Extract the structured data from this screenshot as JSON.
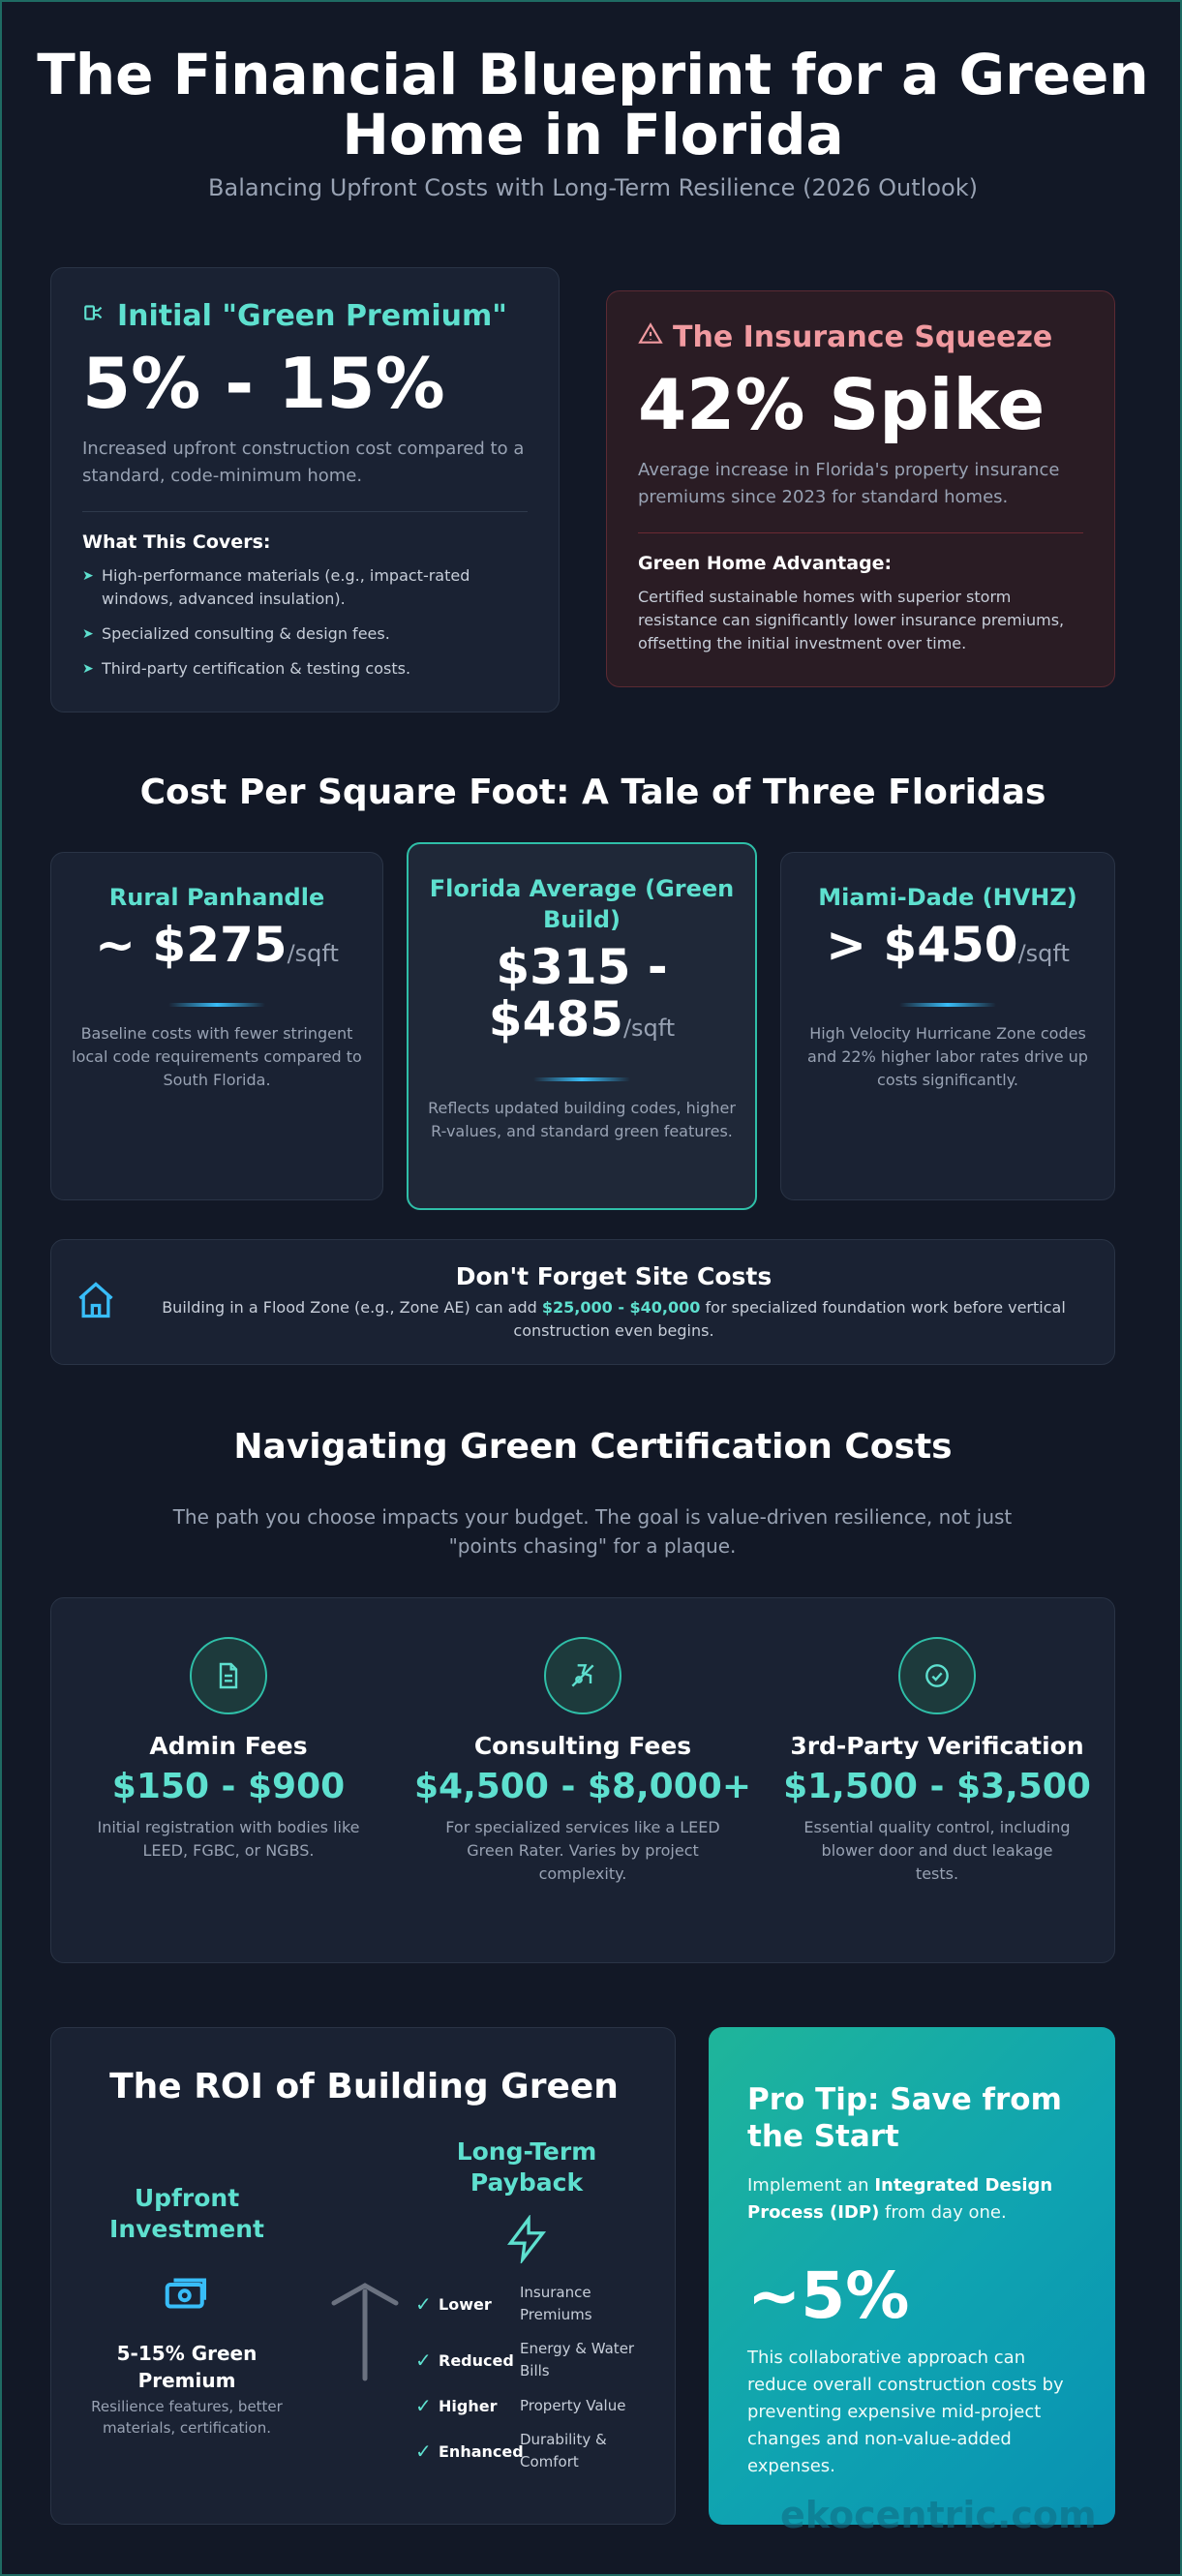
{
  "header": {
    "title": "The Financial Blueprint for a Green Home in Florida",
    "subtitle": "Balancing Upfront Costs with Long-Term Resilience (2026 Outlook)"
  },
  "green_premium": {
    "heading": "Initial \"Green Premium\"",
    "value": "5% - 15%",
    "description": "Increased upfront construction cost compared to a standard, code-minimum home.",
    "covers_title": "What This Covers:",
    "items": [
      "High-performance materials (e.g., impact-rated windows, advanced insulation).",
      "Specialized consulting & design fees.",
      "Third-party certification & testing costs."
    ]
  },
  "insurance": {
    "heading": "The Insurance Squeeze",
    "value": "42% Spike",
    "description": "Average increase in Florida's property insurance premiums since 2023 for standard homes.",
    "advantage_title": "Green Home Advantage:",
    "advantage_text": "Certified sustainable homes with superior storm resistance can significantly lower insurance premiums, offsetting the initial investment over time."
  },
  "cost_section": {
    "title": "Cost Per Square Foot: A Tale of Three Floridas",
    "tiers": [
      {
        "name": "Rural Panhandle",
        "price": "~ $275",
        "unit": "/sqft",
        "desc": "Baseline costs with fewer stringent local code requirements compared to South Florida."
      },
      {
        "name": "Florida Average (Green Build)",
        "price": "$315 - $485",
        "unit": "/sqft",
        "desc": "Reflects updated building codes, higher R-values, and standard green features."
      },
      {
        "name": "Miami-Dade (HVHZ)",
        "price": "> $450",
        "unit": "/sqft",
        "desc": "High Velocity Hurricane Zone codes and 22% higher labor rates drive up costs significantly."
      }
    ]
  },
  "site_costs": {
    "title": "Don't Forget Site Costs",
    "text_before": "Building in a Flood Zone (e.g., Zone AE) can add ",
    "highlight": "$25,000 - $40,000",
    "text_after": " for specialized foundation work before vertical construction even begins."
  },
  "certification": {
    "title": "Navigating Green Certification Costs",
    "intro": "The path you choose impacts your budget. The goal is value-driven resilience, not just \"points chasing\" for a plaque.",
    "items": [
      {
        "name": "Admin Fees",
        "price": "$150 - $900",
        "desc": "Initial registration with bodies like LEED, FGBC, or NGBS."
      },
      {
        "name": "Consulting Fees",
        "price": "$4,500 - $8,000+",
        "desc": "For specialized services like a LEED Green Rater. Varies by project complexity."
      },
      {
        "name": "3rd-Party Verification",
        "price": "$1,500 - $3,500",
        "desc": "Essential quality control, including blower door and duct leakage tests."
      }
    ]
  },
  "roi": {
    "title": "The ROI of Building Green",
    "upfront_title": "Upfront Investment",
    "upfront_value": "5-15% Green Premium",
    "upfront_desc": "Resilience features, better materials, certification.",
    "payback_title": "Long-Term Payback",
    "payback_items": [
      {
        "keyword": "Lower",
        "rest": "Insurance Premiums"
      },
      {
        "keyword": "Reduced",
        "rest": "Energy & Water Bills"
      },
      {
        "keyword": "Higher",
        "rest": "Property Value"
      },
      {
        "keyword": "Enhanced",
        "rest": "Durability & Comfort"
      }
    ]
  },
  "pro_tip": {
    "title": "Pro Tip: Save from the Start",
    "text_before": "Implement an ",
    "bold": "Integrated Design Process (IDP)",
    "text_after": " from day one.",
    "value": "~5%",
    "desc": "This collaborative approach can reduce overall construction costs by preventing expensive mid-project changes and non-value-added expenses."
  },
  "watermark": "ekocentric.com",
  "colors": {
    "accent": "#5ee0cf",
    "danger": "#f19aa0",
    "background": "#121826"
  }
}
